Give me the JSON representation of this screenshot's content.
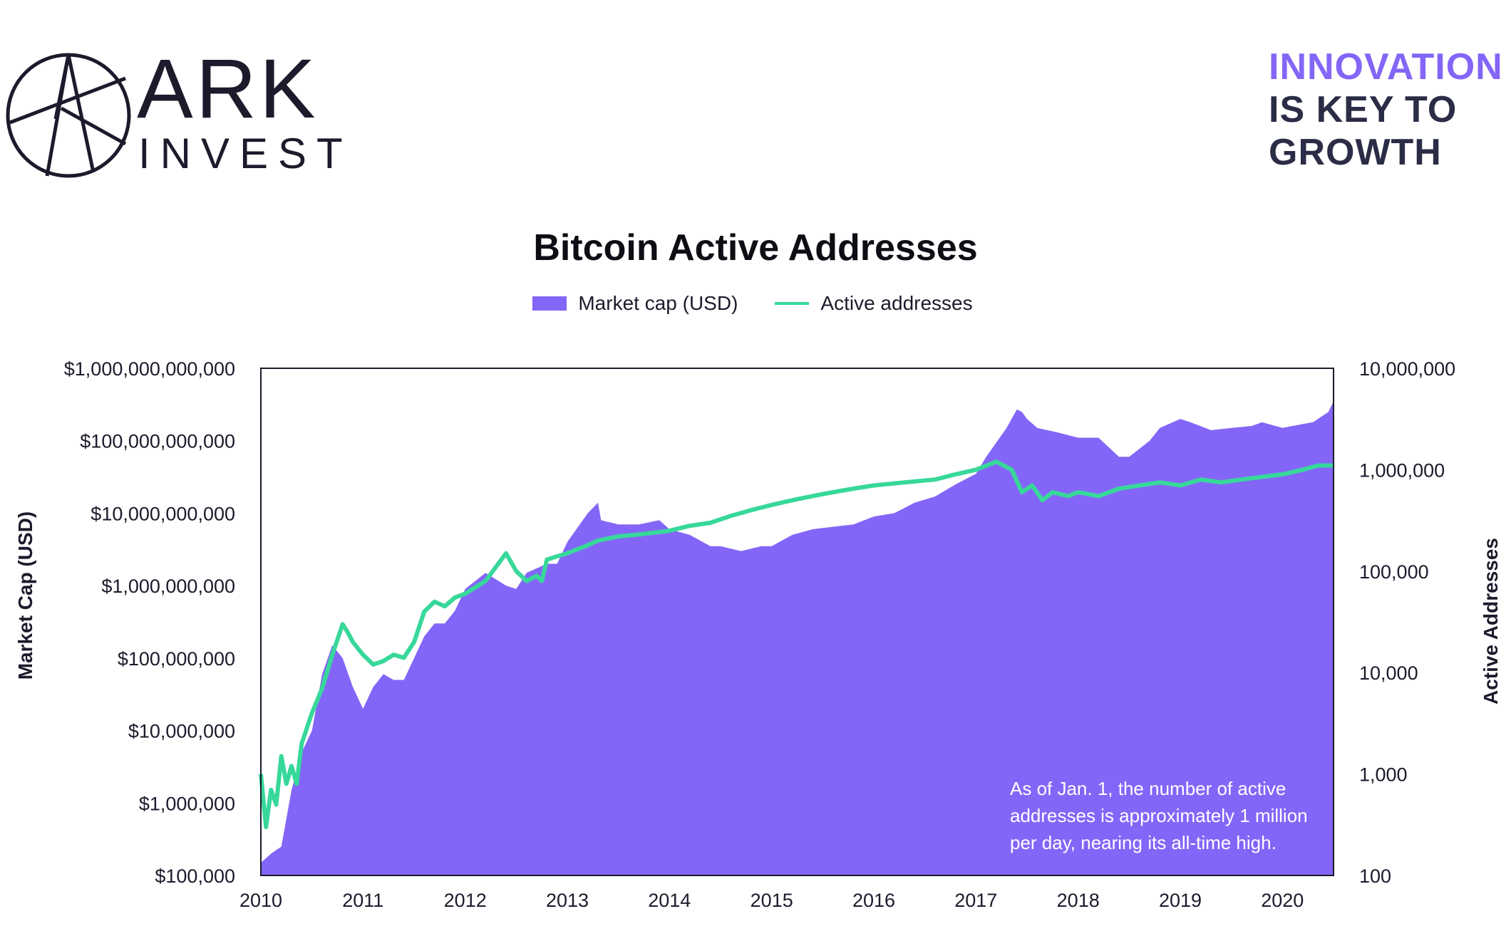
{
  "brand": {
    "name": "ARK",
    "sub": "INVEST",
    "tagline": [
      "INNOVATION",
      "IS KEY TO",
      "GROWTH"
    ],
    "colors": {
      "accent": "#8366f7",
      "dark": "#2b2c46"
    }
  },
  "chart_data": {
    "type": "area",
    "title": "Bitcoin Active Addresses",
    "ylabel": "Market Cap (USD)",
    "y2label": "Active Addresses",
    "xlabel": "",
    "grid": false,
    "legend_position": "top-center",
    "y_scale": "log",
    "y2_scale": "log",
    "ylim": [
      100000,
      1000000000000
    ],
    "y2lim": [
      100,
      10000000
    ],
    "xlim": [
      2010,
      2020.5
    ],
    "x_ticks": [
      "2010",
      "2011",
      "2012",
      "2013",
      "2014",
      "2015",
      "2016",
      "2017",
      "2018",
      "2019",
      "2020"
    ],
    "y_ticks": [
      "$100,000",
      "$1,000,000",
      "$10,000,000",
      "$100,000,000",
      "$1,000,000,000",
      "$10,000,000,000",
      "$100,000,000,000",
      "$1,000,000,000,000"
    ],
    "y2_ticks": [
      "100",
      "1,000",
      "10,000",
      "100,000",
      "1,000,000",
      "10,000,000"
    ],
    "annotation": "As of Jan. 1, the number of active addresses is approximately 1 million per day, nearing its all-time high.",
    "series": [
      {
        "name": "Market cap (USD)",
        "type": "area",
        "axis": "left",
        "color": "#8366f7",
        "x": [
          2010.0,
          2010.1,
          2010.2,
          2010.3,
          2010.4,
          2010.5,
          2010.6,
          2010.7,
          2010.8,
          2010.9,
          2011.0,
          2011.1,
          2011.2,
          2011.3,
          2011.4,
          2011.5,
          2011.6,
          2011.7,
          2011.8,
          2011.9,
          2012.0,
          2012.2,
          2012.4,
          2012.5,
          2012.6,
          2012.8,
          2012.9,
          2013.0,
          2013.2,
          2013.3,
          2013.33,
          2013.5,
          2013.7,
          2013.9,
          2014.0,
          2014.2,
          2014.4,
          2014.5,
          2014.7,
          2014.9,
          2015.0,
          2015.2,
          2015.4,
          2015.6,
          2015.8,
          2016.0,
          2016.2,
          2016.4,
          2016.6,
          2016.8,
          2017.0,
          2017.1,
          2017.3,
          2017.4,
          2017.45,
          2017.5,
          2017.6,
          2017.8,
          2017.9,
          2018.0,
          2018.2,
          2018.4,
          2018.5,
          2018.7,
          2018.8,
          2019.0,
          2019.1,
          2019.3,
          2019.5,
          2019.7,
          2019.8,
          2020.0,
          2020.2,
          2020.3,
          2020.45,
          2020.5
        ],
        "values": [
          150000,
          200000,
          250000,
          1500000,
          5000000,
          10000000,
          60000000,
          150000000,
          100000000,
          40000000,
          20000000,
          40000000,
          60000000,
          50000000,
          50000000,
          100000000,
          200000000,
          300000000,
          300000000,
          450000000,
          900000000,
          1500000000,
          1000000000,
          900000000,
          1500000000,
          2000000000,
          2000000000,
          4000000000,
          10000000000,
          14000000000,
          8000000000,
          7000000000,
          7000000000,
          8000000000,
          6000000000,
          5000000000,
          3500000000,
          3500000000,
          3000000000,
          3500000000,
          3500000000,
          5000000000,
          6000000000,
          6500000000,
          7000000000,
          9000000000,
          10000000000,
          14000000000,
          17000000000,
          25000000000,
          35000000000,
          60000000000,
          150000000000,
          270000000000,
          250000000000,
          200000000000,
          150000000000,
          130000000000,
          120000000000,
          110000000000,
          110000000000,
          60000000000,
          60000000000,
          100000000000,
          150000000000,
          200000000000,
          180000000000,
          140000000000,
          150000000000,
          160000000000,
          180000000000,
          150000000000,
          170000000000,
          180000000000,
          250000000000,
          350000000000
        ]
      },
      {
        "name": "Active addresses",
        "type": "line",
        "axis": "right",
        "color": "#37d89a",
        "x": [
          2010.0,
          2010.05,
          2010.1,
          2010.15,
          2010.2,
          2010.25,
          2010.3,
          2010.35,
          2010.4,
          2010.5,
          2010.6,
          2010.7,
          2010.8,
          2010.85,
          2010.9,
          2011.0,
          2011.1,
          2011.2,
          2011.3,
          2011.4,
          2011.5,
          2011.6,
          2011.7,
          2011.8,
          2011.9,
          2012.0,
          2012.2,
          2012.4,
          2012.5,
          2012.6,
          2012.7,
          2012.75,
          2012.8,
          2012.9,
          2013.0,
          2013.2,
          2013.3,
          2013.5,
          2013.7,
          2014.0,
          2014.2,
          2014.4,
          2014.6,
          2014.8,
          2015.0,
          2015.2,
          2015.4,
          2015.6,
          2015.8,
          2016.0,
          2016.3,
          2016.6,
          2016.8,
          2017.0,
          2017.2,
          2017.35,
          2017.45,
          2017.55,
          2017.65,
          2017.75,
          2017.9,
          2018.0,
          2018.2,
          2018.4,
          2018.6,
          2018.8,
          2019.0,
          2019.2,
          2019.4,
          2019.6,
          2019.8,
          2020.0,
          2020.2,
          2020.35,
          2020.5
        ],
        "values": [
          1000,
          300,
          700,
          500,
          1500,
          800,
          1200,
          800,
          2000,
          4000,
          7000,
          15000,
          30000,
          25000,
          20000,
          15000,
          12000,
          13000,
          15000,
          14000,
          20000,
          40000,
          50000,
          45000,
          55000,
          60000,
          80000,
          150000,
          100000,
          80000,
          90000,
          80000,
          130000,
          140000,
          150000,
          180000,
          200000,
          220000,
          230000,
          250000,
          280000,
          300000,
          350000,
          400000,
          450000,
          500000,
          550000,
          600000,
          650000,
          700000,
          750000,
          800000,
          900000,
          1000000,
          1200000,
          1000000,
          600000,
          700000,
          500000,
          600000,
          550000,
          600000,
          550000,
          650000,
          700000,
          750000,
          700000,
          800000,
          750000,
          800000,
          850000,
          900000,
          1000000,
          1100000,
          1100000
        ]
      }
    ]
  }
}
